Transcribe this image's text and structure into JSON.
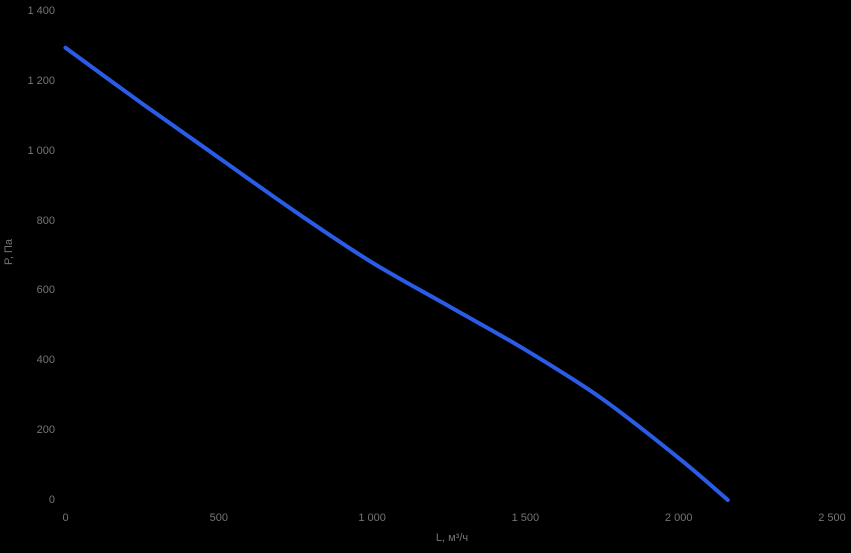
{
  "colors": {
    "background": "#000000",
    "line": "#2a5ce8",
    "label": "#757575"
  },
  "chart_data": {
    "type": "line",
    "title": "",
    "xlabel": "L, м³/ч",
    "ylabel": "P, Па",
    "xlim": [
      0,
      2500
    ],
    "ylim": [
      0,
      1400
    ],
    "grid": false,
    "legend": "none",
    "x_ticks": [
      {
        "value": 0,
        "label": "0"
      },
      {
        "value": 500,
        "label": "500"
      },
      {
        "value": 1000,
        "label": "1 000"
      },
      {
        "value": 1500,
        "label": "1 500"
      },
      {
        "value": 2000,
        "label": "2 000"
      },
      {
        "value": 2500,
        "label": "2 500"
      }
    ],
    "y_ticks": [
      {
        "value": 0,
        "label": "0"
      },
      {
        "value": 200,
        "label": "200"
      },
      {
        "value": 400,
        "label": "400"
      },
      {
        "value": 600,
        "label": "600"
      },
      {
        "value": 800,
        "label": "800"
      },
      {
        "value": 1000,
        "label": "1 000"
      },
      {
        "value": 1200,
        "label": "1 200"
      },
      {
        "value": 1400,
        "label": "1 400"
      }
    ],
    "series": [
      {
        "color": "#2a5ce8",
        "points": [
          [
            0,
            1295
          ],
          [
            250,
            1135
          ],
          [
            500,
            980
          ],
          [
            750,
            825
          ],
          [
            1000,
            680
          ],
          [
            1250,
            555
          ],
          [
            1500,
            430
          ],
          [
            1750,
            290
          ],
          [
            2000,
            120
          ],
          [
            2160,
            0
          ]
        ]
      }
    ]
  }
}
